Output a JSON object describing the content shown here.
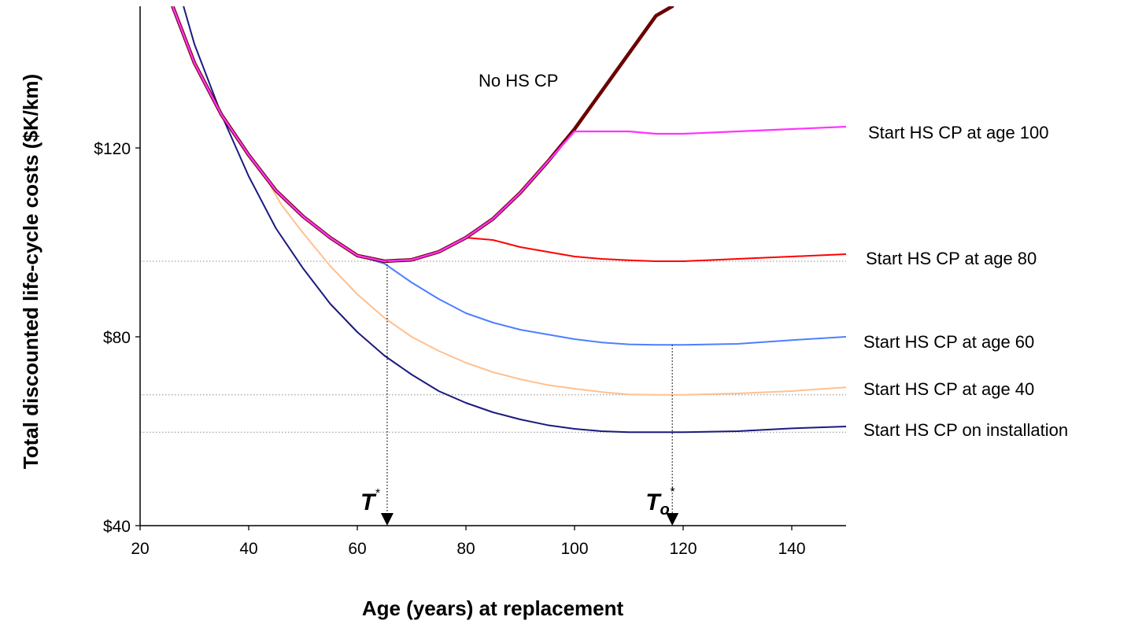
{
  "chart_data": {
    "type": "line",
    "xlabel": "Age (years) at replacement",
    "ylabel": "Total discounted life-cycle costs ($K/km)",
    "xlim": [
      20,
      150
    ],
    "ylim": [
      40,
      150
    ],
    "x_ticks": [
      "20",
      "40",
      "60",
      "80",
      "100",
      "120",
      "140"
    ],
    "y_ticks": [
      "$40",
      "$80",
      "$120"
    ],
    "grid": false,
    "legend": "inline labels at right end of each line",
    "series": [
      {
        "name": "No HS CP",
        "color": "#6b0000",
        "points": [
          [
            26,
            150
          ],
          [
            30,
            138
          ],
          [
            35,
            127
          ],
          [
            40,
            118.5
          ],
          [
            45,
            111
          ],
          [
            50,
            105.5
          ],
          [
            55,
            101
          ],
          [
            60,
            97.2
          ],
          [
            65,
            96
          ],
          [
            70,
            96.3
          ],
          [
            75,
            98
          ],
          [
            80,
            101
          ],
          [
            85,
            105
          ],
          [
            90,
            110.5
          ],
          [
            95,
            117
          ],
          [
            100,
            124
          ],
          [
            105,
            132
          ],
          [
            110,
            140
          ],
          [
            115,
            148
          ],
          [
            118,
            150
          ]
        ]
      },
      {
        "name": "Start HS CP at age 100",
        "color": "#ff33ff",
        "points": [
          [
            26,
            150
          ],
          [
            30,
            138
          ],
          [
            35,
            127
          ],
          [
            40,
            118.5
          ],
          [
            45,
            111
          ],
          [
            50,
            105.5
          ],
          [
            55,
            101
          ],
          [
            60,
            97.2
          ],
          [
            65,
            96
          ],
          [
            70,
            96.3
          ],
          [
            75,
            98
          ],
          [
            80,
            101
          ],
          [
            85,
            105
          ],
          [
            90,
            110.5
          ],
          [
            95,
            117
          ],
          [
            100,
            123.5
          ],
          [
            110,
            123.5
          ],
          [
            115,
            123
          ],
          [
            120,
            123
          ],
          [
            130,
            123.5
          ],
          [
            140,
            124
          ],
          [
            150,
            124.5
          ]
        ]
      },
      {
        "name": "Start HS CP at age 80",
        "color": "#ff0000",
        "points": [
          [
            80,
            101
          ],
          [
            85,
            100.5
          ],
          [
            90,
            99
          ],
          [
            95,
            98
          ],
          [
            100,
            97
          ],
          [
            105,
            96.5
          ],
          [
            110,
            96.2
          ],
          [
            115,
            96
          ],
          [
            120,
            96
          ],
          [
            130,
            96.5
          ],
          [
            140,
            97
          ],
          [
            150,
            97.5
          ]
        ]
      },
      {
        "name": "Start HS CP at age 60",
        "color": "#4d7fff",
        "points": [
          [
            60,
            97.2
          ],
          [
            65,
            95.5
          ],
          [
            70,
            91.5
          ],
          [
            75,
            88
          ],
          [
            80,
            85
          ],
          [
            85,
            83
          ],
          [
            90,
            81.5
          ],
          [
            95,
            80.5
          ],
          [
            100,
            79.5
          ],
          [
            105,
            78.8
          ],
          [
            110,
            78.4
          ],
          [
            115,
            78.3
          ],
          [
            120,
            78.3
          ],
          [
            130,
            78.5
          ],
          [
            140,
            79.3
          ],
          [
            150,
            80
          ]
        ]
      },
      {
        "name": "Start HS CP at age 40",
        "color": "#ffc090",
        "points": [
          [
            44,
            112
          ],
          [
            46,
            108
          ],
          [
            50,
            102
          ],
          [
            55,
            95
          ],
          [
            60,
            89
          ],
          [
            65,
            84
          ],
          [
            70,
            80
          ],
          [
            75,
            77
          ],
          [
            80,
            74.5
          ],
          [
            85,
            72.5
          ],
          [
            90,
            71
          ],
          [
            95,
            69.8
          ],
          [
            100,
            69
          ],
          [
            105,
            68.3
          ],
          [
            110,
            67.8
          ],
          [
            115,
            67.7
          ],
          [
            120,
            67.7
          ],
          [
            130,
            68
          ],
          [
            140,
            68.5
          ],
          [
            150,
            69.3
          ]
        ]
      },
      {
        "name": "Start HS CP on installation",
        "color": "#1a1a80",
        "points": [
          [
            28,
            150
          ],
          [
            30,
            142
          ],
          [
            35,
            127
          ],
          [
            40,
            114
          ],
          [
            45,
            103
          ],
          [
            50,
            94.5
          ],
          [
            55,
            87
          ],
          [
            60,
            81
          ],
          [
            65,
            76
          ],
          [
            70,
            72
          ],
          [
            75,
            68.5
          ],
          [
            80,
            66
          ],
          [
            85,
            64
          ],
          [
            90,
            62.5
          ],
          [
            95,
            61.3
          ],
          [
            100,
            60.5
          ],
          [
            105,
            60
          ],
          [
            110,
            59.8
          ],
          [
            115,
            59.8
          ],
          [
            120,
            59.8
          ],
          [
            130,
            60
          ],
          [
            140,
            60.6
          ],
          [
            150,
            61
          ]
        ]
      }
    ],
    "reference_lines": [
      {
        "type": "horizontal-dotted",
        "y": 96
      },
      {
        "type": "horizontal-dotted",
        "y": 67.7
      },
      {
        "type": "horizontal-dotted",
        "y": 59.8
      }
    ],
    "annotations": [
      {
        "text": "T",
        "superscript": "*",
        "x": 65.5,
        "from_y": 96
      },
      {
        "text": "T",
        "subscript": "o",
        "superscript": "*",
        "x": 118,
        "from_y": 78.3
      }
    ]
  }
}
